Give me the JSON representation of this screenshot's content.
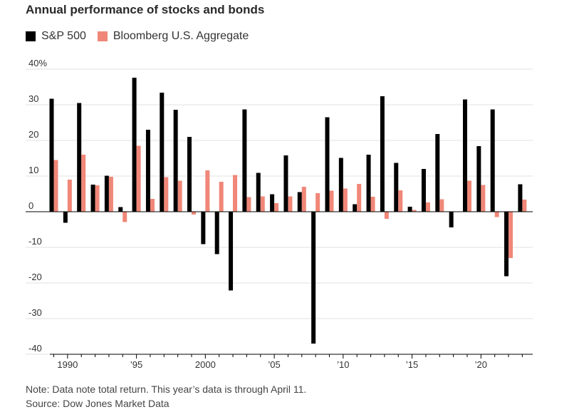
{
  "title": "Annual performance of stocks and bonds",
  "note": "Note: Data note total return. This year’s data is through April 11.",
  "source": "Source: Dow Jones Market Data",
  "colors": {
    "stocks": "#000000",
    "bonds": "#f08778",
    "grid": "#e2e2e2",
    "axis": "#000000"
  },
  "chart_data": {
    "type": "bar",
    "x": [
      1989,
      1990,
      1991,
      1992,
      1993,
      1994,
      1995,
      1996,
      1997,
      1998,
      1999,
      2000,
      2001,
      2002,
      2003,
      2004,
      2005,
      2006,
      2007,
      2008,
      2009,
      2010,
      2011,
      2012,
      2013,
      2014,
      2015,
      2016,
      2017,
      2018,
      2019,
      2020,
      2021,
      2022,
      2023
    ],
    "series": [
      {
        "name": "S&P 500",
        "values": [
          31.7,
          -3.1,
          30.5,
          7.6,
          10.1,
          1.3,
          37.6,
          23.0,
          33.4,
          28.6,
          21.0,
          -9.1,
          -11.9,
          -22.1,
          28.7,
          10.9,
          4.9,
          15.8,
          5.5,
          -37.0,
          26.5,
          15.1,
          2.1,
          16.0,
          32.4,
          13.7,
          1.4,
          12.0,
          21.8,
          -4.4,
          31.5,
          18.4,
          28.7,
          -18.1,
          7.7
        ]
      },
      {
        "name": "Bloomberg U.S. Aggregate",
        "values": [
          14.5,
          9.0,
          16.0,
          7.4,
          9.8,
          -2.9,
          18.5,
          3.6,
          9.7,
          8.7,
          -0.8,
          11.6,
          8.4,
          10.3,
          4.1,
          4.3,
          2.4,
          4.3,
          7.0,
          5.2,
          5.9,
          6.5,
          7.8,
          4.2,
          -2.0,
          6.0,
          0.5,
          2.6,
          3.5,
          0.0,
          8.7,
          7.5,
          -1.5,
          -13.0,
          3.4
        ]
      }
    ],
    "ylim": [
      -40,
      40
    ],
    "yticks": [
      {
        "value": 40,
        "label": "40%"
      },
      {
        "value": 30,
        "label": "30"
      },
      {
        "value": 20,
        "label": "20"
      },
      {
        "value": 10,
        "label": "10"
      },
      {
        "value": 0,
        "label": "0"
      },
      {
        "value": -10,
        "label": "-10"
      },
      {
        "value": -20,
        "label": "-20"
      },
      {
        "value": -30,
        "label": "-30"
      },
      {
        "value": -40,
        "label": "-40"
      }
    ],
    "xticks": [
      {
        "value": 1990,
        "label": "1990"
      },
      {
        "value": 1995,
        "label": "’95"
      },
      {
        "value": 2000,
        "label": "2000"
      },
      {
        "value": 2005,
        "label": "’05"
      },
      {
        "value": 2010,
        "label": "’10"
      },
      {
        "value": 2015,
        "label": "’15"
      },
      {
        "value": 2020,
        "label": "’20"
      }
    ],
    "grid": true,
    "legend": "top-left"
  }
}
